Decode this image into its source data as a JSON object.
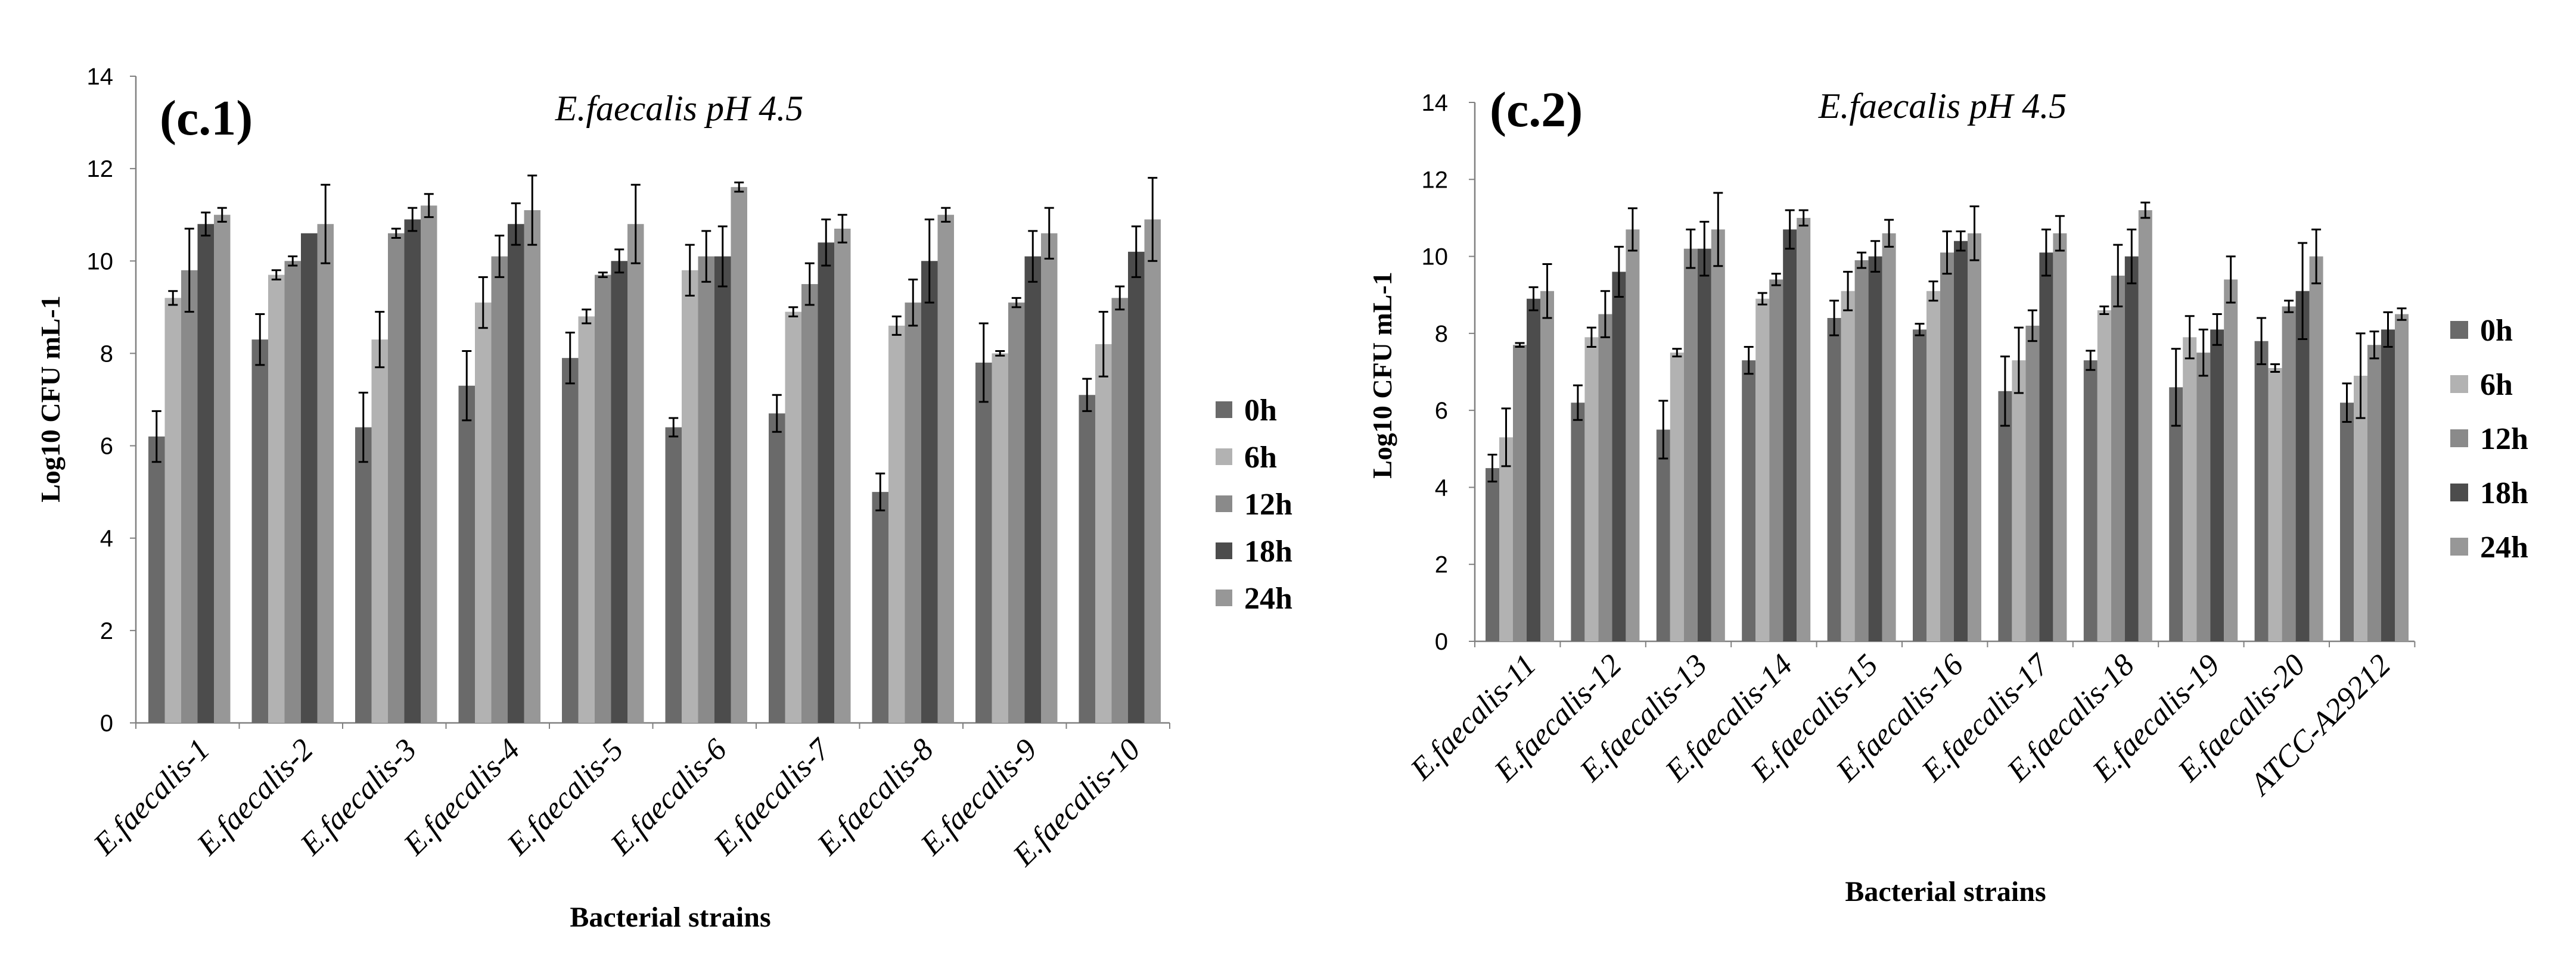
{
  "figure_title": "",
  "colors": {
    "0h": "#6a6a6a",
    "6h": "#b2b2b2",
    "12h": "#8a8a8a",
    "18h": "#4c4c4c",
    "24h": "#979797",
    "axis": "#808080"
  },
  "chart_data": [
    {
      "type": "bar",
      "panel_label": "(c.1)",
      "title": "E.faecalis pH 4.5",
      "xlabel": "Bacterial strains",
      "ylabel": "Log10 CFU mL-1",
      "ylim": [
        0,
        14
      ],
      "yticks": [
        "0",
        "2",
        "4",
        "6",
        "8",
        "10",
        "12",
        "14"
      ],
      "legend_position": "right",
      "categories": [
        "E.faecalis-1",
        "E.faecalis-2",
        "E.faecalis-3",
        "E.faecalis-4",
        "E.faecalis-5",
        "E.faecalis-6",
        "E.faecalis-7",
        "E.faecalis-8",
        "E.faecalis-9",
        "E.faecalis-10"
      ],
      "series": [
        {
          "name": "0h",
          "values": [
            6.2,
            8.3,
            6.4,
            7.3,
            7.9,
            6.4,
            6.7,
            5.0,
            7.8,
            7.1
          ],
          "errors": [
            0.55,
            0.55,
            0.75,
            0.75,
            0.55,
            0.2,
            0.4,
            0.4,
            0.85,
            0.35
          ]
        },
        {
          "name": "6h",
          "values": [
            9.2,
            9.7,
            8.3,
            9.1,
            8.8,
            9.8,
            8.9,
            8.6,
            8.0,
            8.2
          ],
          "errors": [
            0.15,
            0.1,
            0.6,
            0.55,
            0.15,
            0.55,
            0.1,
            0.2,
            0.05,
            0.7
          ]
        },
        {
          "name": "12h",
          "values": [
            9.8,
            10.0,
            10.6,
            10.1,
            9.7,
            10.1,
            9.5,
            9.1,
            9.1,
            9.2
          ],
          "errors": [
            0.9,
            0.1,
            0.1,
            0.45,
            0.05,
            0.55,
            0.45,
            0.5,
            0.1,
            0.25
          ]
        },
        {
          "name": "18h",
          "values": [
            10.8,
            10.6,
            10.9,
            10.8,
            10.0,
            10.1,
            10.4,
            10.0,
            10.1,
            10.2
          ],
          "errors": [
            0.25,
            0.0,
            0.25,
            0.45,
            0.25,
            0.65,
            0.5,
            0.9,
            0.55,
            0.55
          ]
        },
        {
          "name": "24h",
          "values": [
            11.0,
            10.8,
            11.2,
            11.1,
            10.8,
            11.6,
            10.7,
            11.0,
            10.6,
            10.9
          ],
          "errors": [
            0.15,
            0.85,
            0.25,
            0.75,
            0.85,
            0.1,
            0.3,
            0.15,
            0.55,
            0.9
          ]
        }
      ]
    },
    {
      "type": "bar",
      "panel_label": "(c.2)",
      "title": "E.faecalis pH 4.5",
      "xlabel": "Bacterial strains",
      "ylabel": "Log10 CFU mL-1",
      "ylim": [
        0,
        14
      ],
      "yticks": [
        "0",
        "2",
        "4",
        "6",
        "8",
        "10",
        "12",
        "14"
      ],
      "legend_position": "right",
      "categories": [
        "E.faecalis-11",
        "E.faecalis-12",
        "E.faecalis-13",
        "E.faecalis-14",
        "E.faecalis-15",
        "E.faecalis-16",
        "E.faecalis-17",
        "E.faecalis-18",
        "E.faecalis-19",
        "E.faecalis-20",
        "ATCC-A29212"
      ],
      "series": [
        {
          "name": "0h",
          "values": [
            4.5,
            6.2,
            5.5,
            7.3,
            8.4,
            8.1,
            6.5,
            7.3,
            6.6,
            7.8,
            6.2
          ],
          "errors": [
            0.35,
            0.45,
            0.75,
            0.35,
            0.45,
            0.15,
            0.9,
            0.25,
            1.0,
            0.6,
            0.5
          ]
        },
        {
          "name": "6h",
          "values": [
            5.3,
            7.9,
            7.5,
            8.9,
            9.1,
            9.1,
            7.3,
            8.6,
            7.9,
            7.1,
            6.9
          ],
          "errors": [
            0.75,
            0.25,
            0.1,
            0.15,
            0.5,
            0.25,
            0.85,
            0.1,
            0.55,
            0.1,
            1.1
          ]
        },
        {
          "name": "12h",
          "values": [
            7.7,
            8.5,
            10.2,
            9.4,
            9.9,
            10.1,
            8.2,
            9.5,
            7.5,
            8.7,
            7.7
          ],
          "errors": [
            0.05,
            0.6,
            0.5,
            0.15,
            0.2,
            0.55,
            0.4,
            0.8,
            0.6,
            0.15,
            0.35
          ]
        },
        {
          "name": "18h",
          "values": [
            8.9,
            9.6,
            10.2,
            10.7,
            10.0,
            10.4,
            10.1,
            10.0,
            8.1,
            9.1,
            8.1
          ],
          "errors": [
            0.3,
            0.65,
            0.7,
            0.5,
            0.4,
            0.25,
            0.6,
            0.7,
            0.4,
            1.25,
            0.45
          ]
        },
        {
          "name": "24h",
          "values": [
            9.1,
            10.7,
            10.7,
            11.0,
            10.6,
            10.6,
            10.6,
            11.2,
            9.4,
            10.0,
            8.5
          ],
          "errors": [
            0.7,
            0.55,
            0.95,
            0.2,
            0.35,
            0.7,
            0.45,
            0.2,
            0.6,
            0.7,
            0.15
          ]
        }
      ]
    }
  ]
}
